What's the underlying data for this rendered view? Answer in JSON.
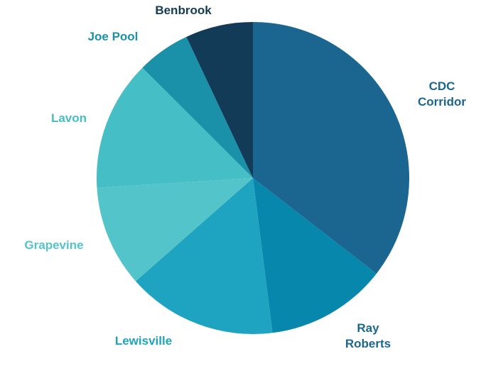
{
  "chart_data": {
    "type": "pie",
    "title": "",
    "slices": [
      {
        "label": "CDC Corridor",
        "label_lines": [
          "CDC",
          "Corridor"
        ],
        "value": 35.5,
        "color": "#1b6690",
        "label_color": "#1b6690"
      },
      {
        "label": "Ray Roberts",
        "label_lines": [
          "Ray",
          "Roberts"
        ],
        "value": 12.5,
        "color": "#0787ab",
        "label_color": "#1b6690"
      },
      {
        "label": "Lewisville",
        "label_lines": [
          "Lewisville"
        ],
        "value": 15.5,
        "color": "#1ea4c0",
        "label_color": "#1ea4c0"
      },
      {
        "label": "Grapevine",
        "label_lines": [
          "Grapevine"
        ],
        "value": 10.5,
        "color": "#54c4cb",
        "label_color": "#54c4cb"
      },
      {
        "label": "Lavon",
        "label_lines": [
          "Lavon"
        ],
        "value": 13.5,
        "color": "#45bec5",
        "label_color": "#45bec5"
      },
      {
        "label": "Joe Pool",
        "label_lines": [
          "Joe Pool"
        ],
        "value": 5.5,
        "color": "#1a91a8",
        "label_color": "#1a91a8"
      },
      {
        "label": "Benbrook",
        "label_lines": [
          "Benbrook"
        ],
        "value": 7.0,
        "color": "#123b57",
        "label_color": "#123b57"
      }
    ]
  }
}
